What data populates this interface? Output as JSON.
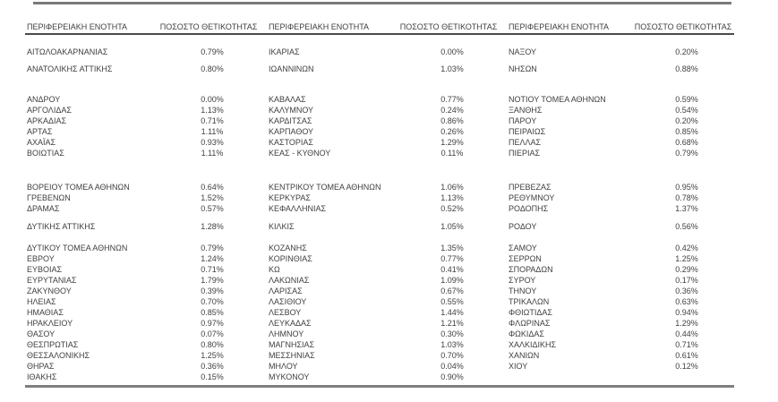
{
  "page": {
    "background": "#ffffff"
  },
  "colors": {
    "text": "#3f3f3f",
    "header_rule": "#4a4a4a",
    "top_rule": "#7a7a7a",
    "bottom_rule": "#7f7f7f"
  },
  "table": {
    "header_region": "ΠΕΡΙΦΕΡΕΙΑΚΗ ΕΝΟΤΗΤΑ",
    "header_rate": "ΠΟΣΟΣΤΟ ΘΕΤΙΚΟΤΗΤΑΣ",
    "rows": [
      {
        "cells": [
          "ΑΙΤΩΛΟΑΚΑΡΝΑΝΙΑΣ",
          "0.79%",
          "ΙΚΑΡΙΑΣ",
          "0.00%",
          "ΝΑΞΟΥ",
          "0.20%"
        ]
      },
      {
        "spacer": 7
      },
      {
        "cells": [
          "ΑΝΑΤΟΛΙΚΗΣ ΑΤΤΙΚΗΣ",
          "0.80%",
          "ΙΩΑΝΝΙΝΩΝ",
          "1.03%",
          "ΝΗΣΩΝ",
          "0.88%"
        ]
      },
      {
        "spacer": 22
      },
      {
        "cells": [
          "ΑΝΔΡΟΥ",
          "0.00%",
          "ΚΑΒΑΛΑΣ",
          "0.77%",
          "ΝΟΤΙΟΥ ΤΟΜΕΑ ΑΘΗΝΩΝ",
          "0.59%"
        ]
      },
      {
        "cells": [
          "ΑΡΓΟΛΙΔΑΣ",
          "1.13%",
          "ΚΑΛΥΜΝΟΥ",
          "0.24%",
          "ΞΑΝΘΗΣ",
          "0.54%"
        ]
      },
      {
        "cells": [
          "ΑΡΚΑΔΙΑΣ",
          "0.71%",
          "ΚΑΡΔΙΤΣΑΣ",
          "0.86%",
          "ΠΑΡΟΥ",
          "0.20%"
        ]
      },
      {
        "cells": [
          "ΑΡΤΑΣ",
          "1.11%",
          "ΚΑΡΠΑΘΟΥ",
          "0.26%",
          "ΠΕΙΡΑΙΩΣ",
          "0.85%"
        ]
      },
      {
        "cells": [
          "ΑΧΑΪΑΣ",
          "0.93%",
          "ΚΑΣΤΟΡΙΑΣ",
          "1.29%",
          "ΠΕΛΛΑΣ",
          "0.68%"
        ]
      },
      {
        "cells": [
          "ΒΟΙΩΤΙΑΣ",
          "1.11%",
          "ΚΕΑΣ - ΚΥΘΝΟΥ",
          "0.11%",
          "ΠΙΕΡΙΑΣ",
          "0.79%"
        ]
      },
      {
        "spacer": 26
      },
      {
        "cells": [
          "ΒΟΡΕΙΟΥ ΤΟΜΕΑ ΑΘΗΝΩΝ",
          "0.64%",
          "ΚΕΝΤΡΙΚΟΥ ΤΟΜΕΑ ΑΘΗΝΩΝ",
          "1.06%",
          "ΠΡΕΒΕΖΑΣ",
          "0.95%"
        ]
      },
      {
        "cells": [
          "ΓΡΕΒΕΝΩΝ",
          "1.52%",
          "ΚΕΡΚΥΡΑΣ",
          "1.13%",
          "ΡΕΘΥΜΝΟΥ",
          "0.78%"
        ]
      },
      {
        "cells": [
          "ΔΡΑΜΑΣ",
          "0.57%",
          "ΚΕΦΑΛΛΗΝΙΑΣ",
          "0.52%",
          "ΡΟΔΟΠΗΣ",
          "1.37%"
        ]
      },
      {
        "spacer": 8
      },
      {
        "cells": [
          "ΔΥΤΙΚΗΣ ΑΤΤΙΚΗΣ",
          "1.28%",
          "ΚΙΛΚΙΣ",
          "1.05%",
          "ΡΟΔΟΥ",
          "0.56%"
        ]
      },
      {
        "spacer": 12
      },
      {
        "cells": [
          "ΔΥΤΙΚΟΥ ΤΟΜΕΑ ΑΘΗΝΩΝ",
          "0.79%",
          "ΚΟΖΑΝΗΣ",
          "1.35%",
          "ΣΑΜΟΥ",
          "0.42%"
        ]
      },
      {
        "cells": [
          "ΕΒΡΟΥ",
          "1.24%",
          "ΚΟΡΙΝΘΙΑΣ",
          "0.77%",
          "ΣΕΡΡΩΝ",
          "1.25%"
        ]
      },
      {
        "cells": [
          "ΕΥΒΟΙΑΣ",
          "0.71%",
          "ΚΩ",
          "0.41%",
          "ΣΠΟΡΑΔΩΝ",
          "0.29%"
        ]
      },
      {
        "cells": [
          "ΕΥΡΥΤΑΝΙΑΣ",
          "1.79%",
          "ΛΑΚΩΝΙΑΣ",
          "1.09%",
          "ΣΥΡΟΥ",
          "0.17%"
        ]
      },
      {
        "cells": [
          "ΖΑΚΥΝΘΟΥ",
          "0.39%",
          "ΛΑΡΙΣΑΣ",
          "0.67%",
          "ΤΗΝΟΥ",
          "0.36%"
        ]
      },
      {
        "cells": [
          "ΗΛΕΙΑΣ",
          "0.70%",
          "ΛΑΣΙΘΙΟΥ",
          "0.55%",
          "ΤΡΙΚΑΛΩΝ",
          "0.63%"
        ]
      },
      {
        "cells": [
          "ΗΜΑΘΙΑΣ",
          "0.85%",
          "ΛΕΣΒΟΥ",
          "1.44%",
          "ΦΘΙΩΤΙΔΑΣ",
          "0.94%"
        ]
      },
      {
        "cells": [
          "ΗΡΑΚΛΕΙΟΥ",
          "0.97%",
          "ΛΕΥΚΑΔΑΣ",
          "1.21%",
          "ΦΛΩΡΙΝΑΣ",
          "1.29%"
        ]
      },
      {
        "cells": [
          "ΘΑΣΟΥ",
          "0.07%",
          "ΛΗΜΝΟΥ",
          "0.30%",
          "ΦΩΚΙΔΑΣ",
          "0.44%"
        ]
      },
      {
        "cells": [
          "ΘΕΣΠΡΩΤΙΑΣ",
          "0.80%",
          "ΜΑΓΝΗΣΙΑΣ",
          "1.03%",
          "ΧΑΛΚΙΔΙΚΗΣ",
          "0.71%"
        ]
      },
      {
        "cells": [
          "ΘΕΣΣΑΛΟΝΙΚΗΣ",
          "1.25%",
          "ΜΕΣΣΗΝΙΑΣ",
          "0.70%",
          "ΧΑΝΙΩΝ",
          "0.61%"
        ]
      },
      {
        "cells": [
          "ΘΗΡΑΣ",
          "0.36%",
          "ΜΗΛΟΥ",
          "0.04%",
          "ΧΙΟΥ",
          "0.12%"
        ]
      },
      {
        "cells": [
          "ΙΘΑΚΗΣ",
          "0.15%",
          "ΜΥΚΟΝΟΥ",
          "0.90%",
          "",
          ""
        ]
      }
    ]
  }
}
